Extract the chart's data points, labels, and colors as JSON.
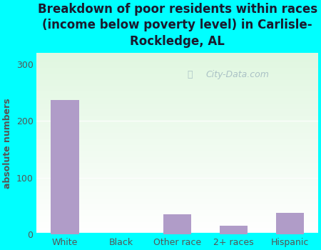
{
  "categories": [
    "White",
    "Black",
    "Other race",
    "2+ races",
    "Hispanic"
  ],
  "values": [
    237,
    0,
    35,
    15,
    38
  ],
  "bar_color": "#b09cc8",
  "title": "Breakdown of poor residents within races\n(income below poverty level) in Carlisle-\nRockledge, AL",
  "ylabel": "absolute numbers",
  "ylim": [
    0,
    320
  ],
  "yticks": [
    0,
    100,
    200,
    300
  ],
  "outer_bg": "#00ffff",
  "plot_bg_top": "#e8f5e8",
  "plot_bg_bottom": "#ffffff",
  "watermark": "City-Data.com",
  "title_fontsize": 12,
  "ylabel_fontsize": 9,
  "tick_fontsize": 9,
  "title_color": "#1a1a2e",
  "tick_color": "#555555"
}
